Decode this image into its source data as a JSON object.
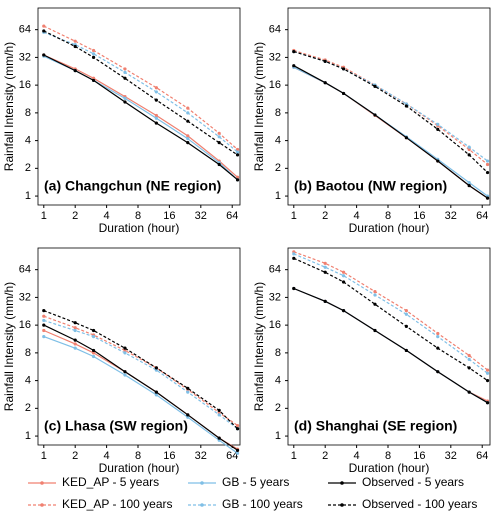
{
  "chart_data": [
    {
      "type": "line",
      "title": "(a) Changchun (NE region)",
      "xlabel": "Duration (hour)",
      "ylabel": "Rainfall Intensity (mm/h)",
      "log_x": true,
      "log_y": true,
      "xlim": [
        0.88,
        76
      ],
      "ylim": [
        0.8,
        110
      ],
      "xticks": [
        1,
        2,
        4,
        8,
        16,
        32,
        64
      ],
      "yticks": [
        1,
        2,
        4,
        8,
        16,
        32,
        64
      ],
      "x": [
        1,
        2,
        3,
        6,
        12,
        24,
        48,
        72
      ],
      "series": [
        {
          "name": "KED_AP - 5 years",
          "color": "#f08070",
          "linestyle": "solid",
          "values": [
            34,
            24,
            19,
            12,
            7.5,
            4.5,
            2.4,
            1.6
          ]
        },
        {
          "name": "KED_AP - 100 years",
          "color": "#f08070",
          "linestyle": "dashed",
          "values": [
            70,
            48,
            38,
            24,
            15,
            9,
            4.8,
            3.2
          ]
        },
        {
          "name": "GB - 5 years",
          "color": "#7fbfe6",
          "linestyle": "solid",
          "values": [
            33,
            23,
            18,
            11.5,
            7,
            4.2,
            2.3,
            1.5
          ]
        },
        {
          "name": "GB - 100 years",
          "color": "#7fbfe6",
          "linestyle": "dashed",
          "values": [
            60,
            44,
            35,
            22,
            13.5,
            8,
            4.4,
            3.0
          ]
        },
        {
          "name": "Observed - 5 years",
          "color": "#000000",
          "linestyle": "solid",
          "values": [
            34,
            23,
            18,
            10.5,
            6.2,
            3.8,
            2.2,
            1.5
          ]
        },
        {
          "name": "Observed - 100 years",
          "color": "#000000",
          "linestyle": "dashed",
          "values": [
            62,
            42,
            32,
            19,
            11,
            6.5,
            3.8,
            2.8
          ]
        }
      ]
    },
    {
      "type": "line",
      "title": "(b) Baotou (NW region)",
      "xlabel": "Duration (hour)",
      "ylabel": "Rainfall Intensity (mm/h)",
      "log_x": true,
      "log_y": true,
      "xlim": [
        0.88,
        76
      ],
      "ylim": [
        0.8,
        110
      ],
      "xticks": [
        1,
        2,
        4,
        8,
        16,
        32,
        64
      ],
      "yticks": [
        1,
        2,
        4,
        8,
        16,
        32,
        64
      ],
      "x": [
        1,
        2,
        3,
        6,
        12,
        24,
        48,
        72
      ],
      "series": [
        {
          "name": "KED_AP - 5 years",
          "color": "#f08070",
          "linestyle": "solid",
          "values": [
            25,
            17,
            13,
            7.5,
            4.3,
            2.4,
            1.3,
            0.95
          ]
        },
        {
          "name": "KED_AP - 100 years",
          "color": "#f08070",
          "linestyle": "dashed",
          "values": [
            38,
            30,
            25,
            16,
            10,
            5.8,
            3.2,
            2.2
          ]
        },
        {
          "name": "GB - 5 years",
          "color": "#7fbfe6",
          "linestyle": "solid",
          "values": [
            25,
            17,
            13,
            7.6,
            4.4,
            2.5,
            1.4,
            1.0
          ]
        },
        {
          "name": "GB - 100 years",
          "color": "#7fbfe6",
          "linestyle": "dashed",
          "values": [
            37,
            29,
            24,
            16,
            10,
            6,
            3.4,
            2.4
          ]
        },
        {
          "name": "Observed - 5 years",
          "color": "#000000",
          "linestyle": "solid",
          "values": [
            26,
            17,
            13,
            7.6,
            4.3,
            2.4,
            1.3,
            0.95
          ]
        },
        {
          "name": "Observed - 100 years",
          "color": "#000000",
          "linestyle": "dashed",
          "values": [
            37,
            29,
            24,
            15.5,
            9.5,
            5.3,
            2.8,
            1.8
          ]
        }
      ]
    },
    {
      "type": "line",
      "title": "(c) Lhasa (SW region)",
      "xlabel": "Duration (hour)",
      "ylabel": "Rainfall Intensity (mm/h)",
      "log_x": true,
      "log_y": true,
      "xlim": [
        0.88,
        76
      ],
      "ylim": [
        0.8,
        110
      ],
      "xticks": [
        1,
        2,
        4,
        8,
        16,
        32,
        64
      ],
      "yticks": [
        1,
        2,
        4,
        8,
        16,
        32,
        64
      ],
      "x": [
        1,
        2,
        3,
        6,
        12,
        24,
        48,
        72
      ],
      "series": [
        {
          "name": "KED_AP - 5 years",
          "color": "#f08070",
          "linestyle": "solid",
          "values": [
            14,
            10,
            8,
            5,
            3,
            1.7,
            0.95,
            0.72
          ]
        },
        {
          "name": "KED_AP - 100 years",
          "color": "#f08070",
          "linestyle": "dashed",
          "values": [
            20,
            15,
            12.5,
            8.5,
            5.5,
            3.2,
            1.8,
            1.3
          ]
        },
        {
          "name": "GB - 5 years",
          "color": "#7fbfe6",
          "linestyle": "solid",
          "values": [
            12,
            9,
            7.3,
            4.6,
            2.8,
            1.6,
            0.9,
            0.65
          ]
        },
        {
          "name": "GB - 100 years",
          "color": "#7fbfe6",
          "linestyle": "dashed",
          "values": [
            18,
            14,
            12,
            8,
            5.2,
            3.0,
            1.7,
            1.2
          ]
        },
        {
          "name": "Observed - 5 years",
          "color": "#000000",
          "linestyle": "solid",
          "values": [
            16,
            11,
            8.5,
            5,
            3,
            1.7,
            0.95,
            0.7
          ]
        },
        {
          "name": "Observed - 100 years",
          "color": "#000000",
          "linestyle": "dashed",
          "values": [
            23,
            17,
            14,
            9,
            5.5,
            3.3,
            1.9,
            1.2
          ]
        }
      ]
    },
    {
      "type": "line",
      "title": "(d) Shanghai (SE region)",
      "xlabel": "Duration (hour)",
      "ylabel": "Rainfall Intensity (mm/h)",
      "log_x": true,
      "log_y": true,
      "xlim": [
        0.88,
        76
      ],
      "ylim": [
        0.8,
        110
      ],
      "xticks": [
        1,
        2,
        4,
        8,
        16,
        32,
        64
      ],
      "yticks": [
        1,
        2,
        4,
        8,
        16,
        32,
        64
      ],
      "x": [
        1,
        2,
        3,
        6,
        12,
        24,
        48,
        72
      ],
      "series": [
        {
          "name": "KED_AP - 5 years",
          "color": "#f08070",
          "linestyle": "solid",
          "values": [
            40,
            29,
            23,
            14,
            8.5,
            5,
            3.0,
            2.4
          ]
        },
        {
          "name": "KED_AP - 100 years",
          "color": "#f08070",
          "linestyle": "dashed",
          "values": [
            100,
            75,
            60,
            37,
            23,
            13,
            7.5,
            5.2
          ]
        },
        {
          "name": "GB - 5 years",
          "color": "#7fbfe6",
          "linestyle": "solid",
          "values": [
            40,
            29,
            23,
            14,
            8.5,
            5,
            3.0,
            2.3
          ]
        },
        {
          "name": "GB - 100 years",
          "color": "#7fbfe6",
          "linestyle": "dashed",
          "values": [
            95,
            68,
            55,
            34,
            21,
            12,
            6.8,
            4.8
          ]
        },
        {
          "name": "Observed - 5 years",
          "color": "#000000",
          "linestyle": "solid",
          "values": [
            40,
            29,
            23,
            14,
            8.5,
            5,
            3.0,
            2.3
          ]
        },
        {
          "name": "Observed - 100 years",
          "color": "#000000",
          "linestyle": "dashed",
          "values": [
            85,
            60,
            47,
            27,
            15.5,
            9,
            5.5,
            4.0
          ]
        }
      ]
    }
  ]
}
